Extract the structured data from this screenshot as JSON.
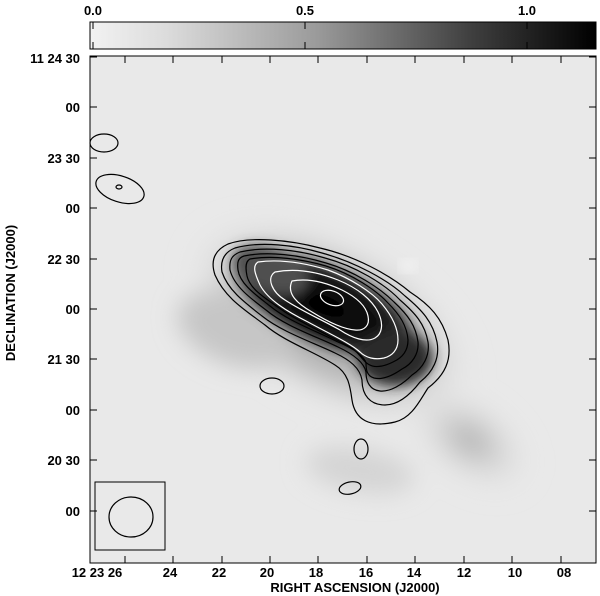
{
  "colorbar": {
    "labels": [
      "0.0",
      "0.5",
      "1.0"
    ],
    "values": [
      0.0,
      0.5,
      1.0
    ],
    "range": [
      0.0,
      1.15
    ],
    "colormap": "grayscale, white to black"
  },
  "axes": {
    "xlabel": "RIGHT ASCENSION (J2000)",
    "ylabel": "DECLINATION (J2000)",
    "x_ticks": [
      "12 23 26",
      "24",
      "22",
      "20",
      "18",
      "16",
      "14",
      "12",
      "10",
      "08"
    ],
    "y_ticks": [
      "11 24 30",
      "00",
      "23 30",
      "00",
      "22 30",
      "00",
      "21 30",
      "00",
      "20 30",
      "00"
    ]
  },
  "image": {
    "contour_color_outer": "#000000",
    "contour_color_inner": "#ffffff",
    "beam_label": "beam"
  }
}
